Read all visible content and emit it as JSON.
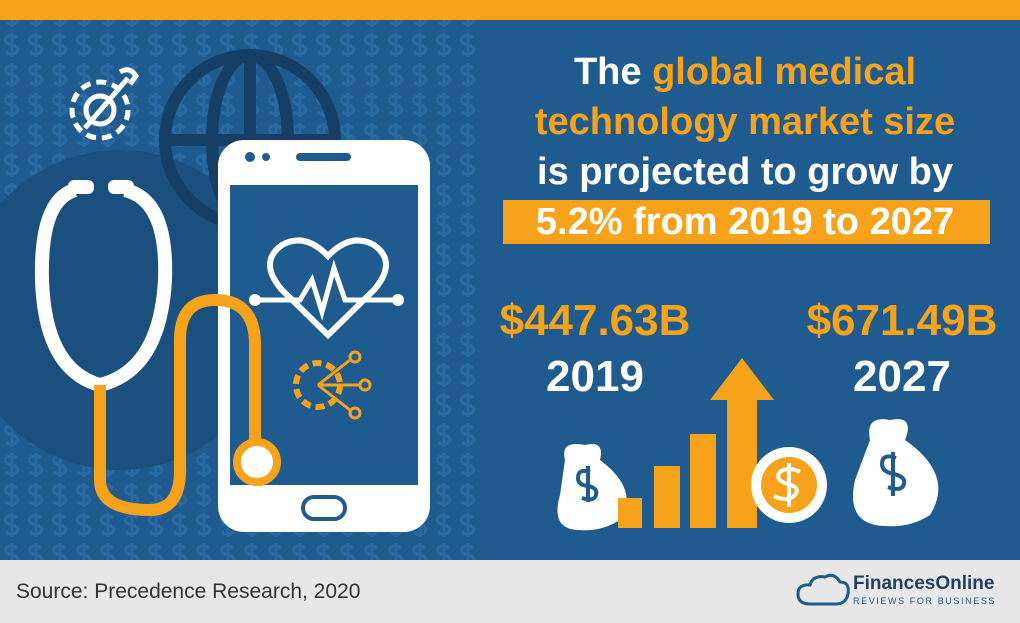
{
  "headline": {
    "line1_start": "The",
    "line1_highlight": "global medical",
    "line2": "technology market size",
    "line3": "is projected to grow by",
    "line4": "5.2% from 2019 to 2027"
  },
  "stats": [
    {
      "amount": "$447.63B",
      "year": "2019"
    },
    {
      "amount": "$671.49B",
      "year": "2027"
    }
  ],
  "footer": {
    "source": "Source: Precedence Research, 2020",
    "brand": "FinancesOnline",
    "tagline": "REVIEWS FOR BUSINESS"
  }
}
